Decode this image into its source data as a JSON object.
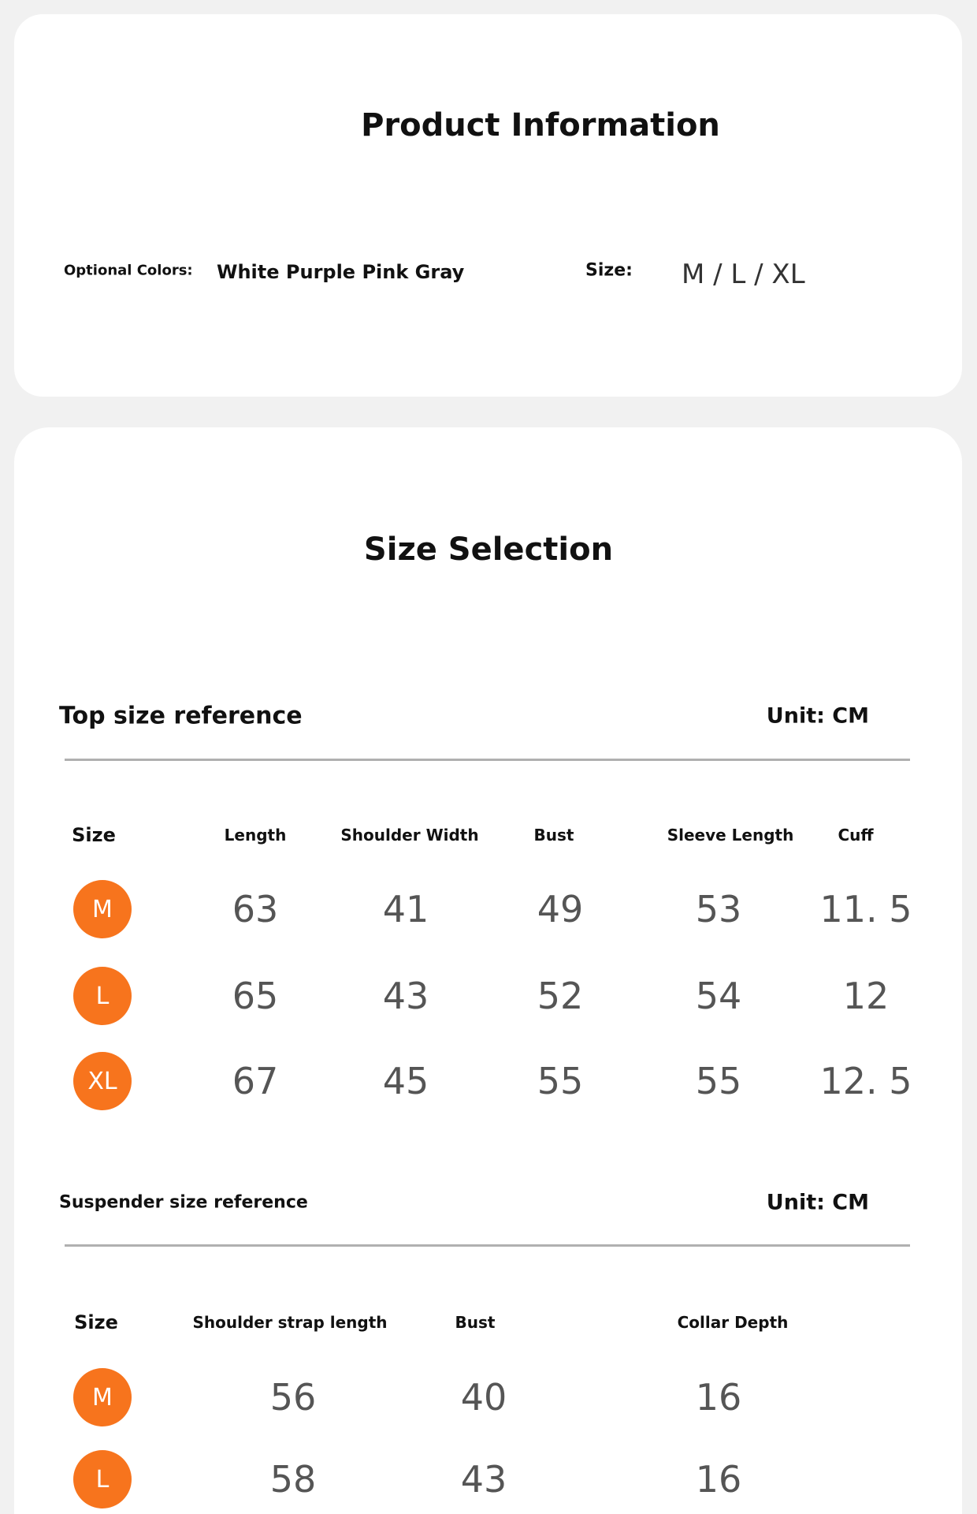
{
  "product_info": {
    "title": "Product Information",
    "colors_label": "Optional Colors:",
    "colors_value": "White Purple Pink Gray",
    "size_label": "Size:",
    "size_value": "M / L / XL"
  },
  "size_selection": {
    "title": "Size Selection",
    "top": {
      "title": "Top size reference",
      "unit": "Unit: CM",
      "headers": [
        "Size",
        "Length",
        "Shoulder Width",
        "Bust",
        "Sleeve Length",
        "Cuff"
      ],
      "rows": [
        [
          "M",
          "63",
          "41",
          "49",
          "53",
          "11. 5"
        ],
        [
          "L",
          "65",
          "43",
          "52",
          "54",
          "12"
        ],
        [
          "XL",
          "67",
          "45",
          "55",
          "55",
          "12. 5"
        ]
      ]
    },
    "suspender": {
      "title": "Suspender size reference",
      "unit": "Unit: CM",
      "headers": [
        "Size",
        "Shoulder strap length",
        "Bust",
        "Collar Depth"
      ],
      "rows": [
        [
          "M",
          "56",
          "40",
          "16"
        ],
        [
          "L",
          "58",
          "43",
          "16"
        ]
      ]
    }
  }
}
